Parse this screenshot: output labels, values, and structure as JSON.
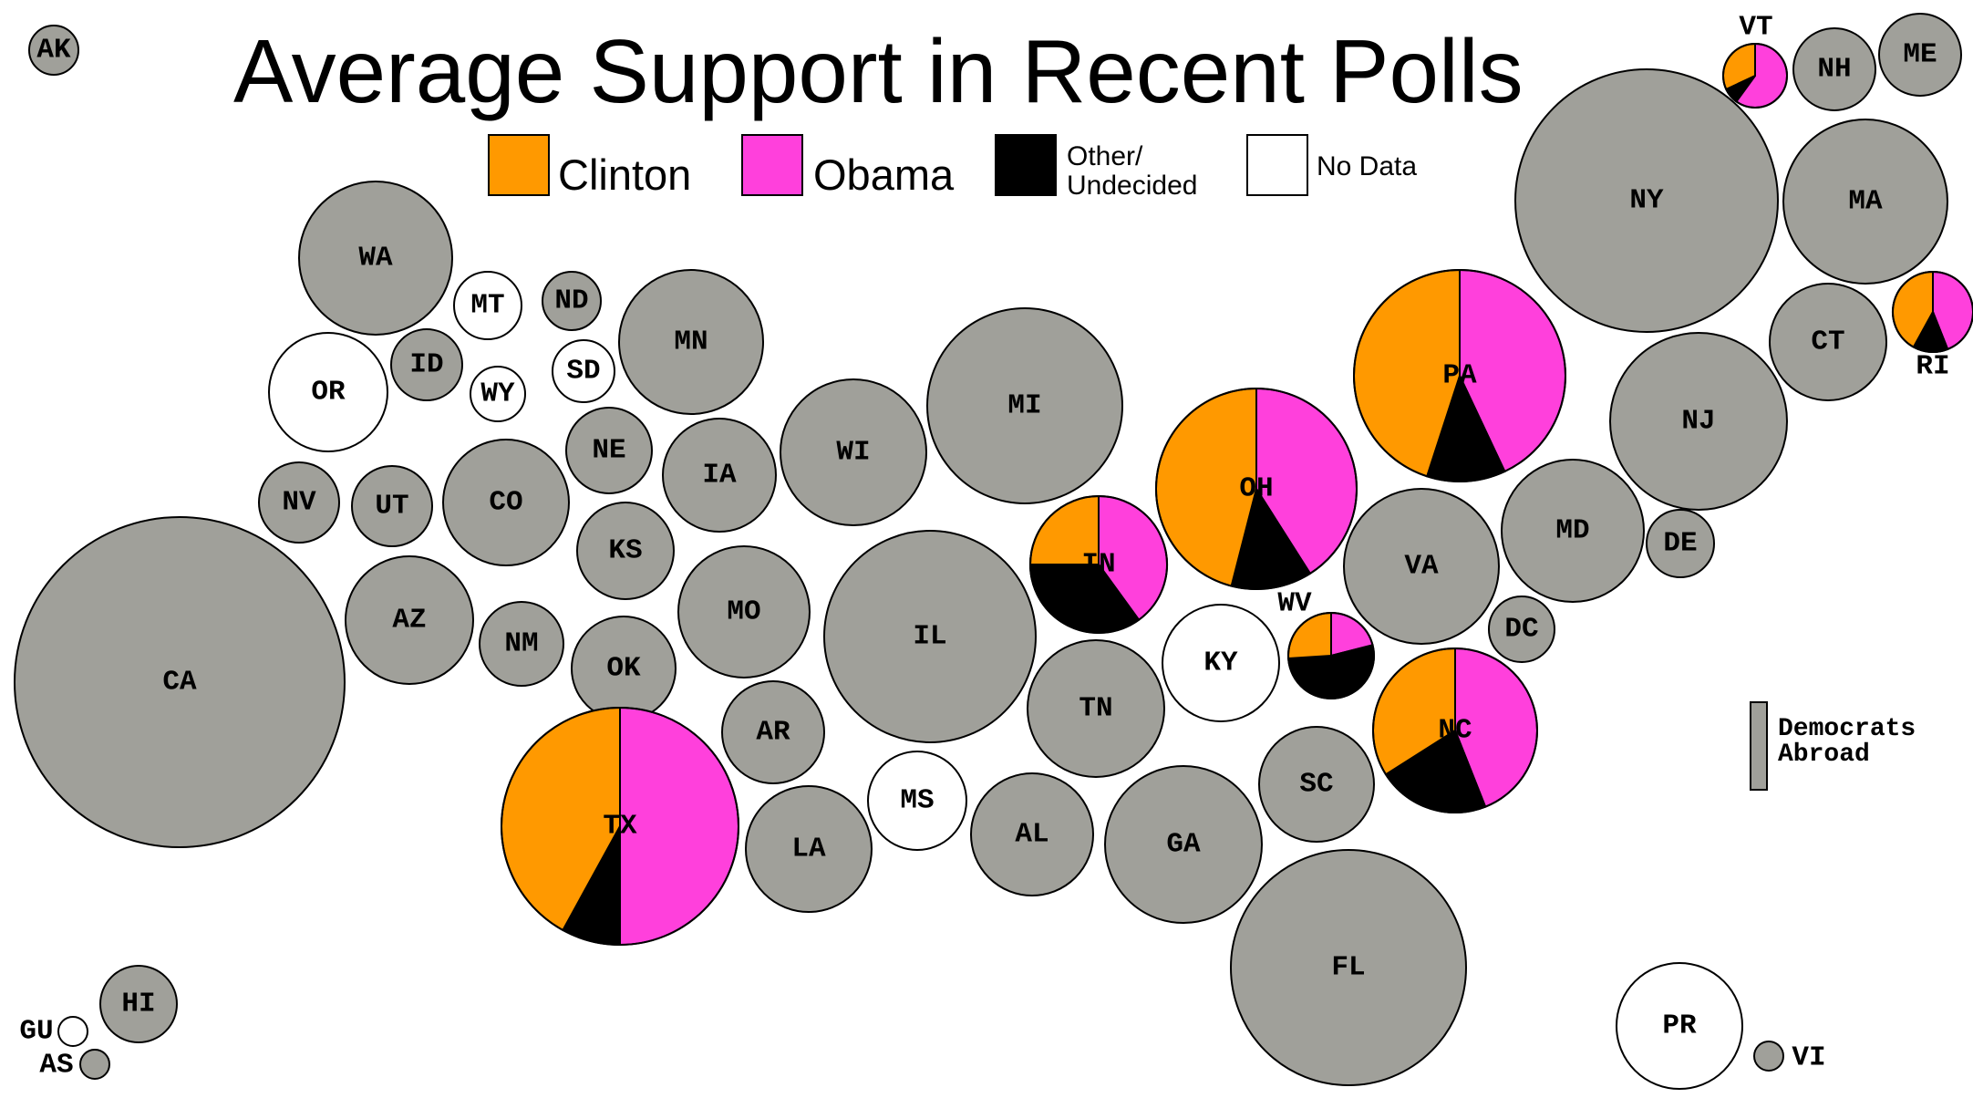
{
  "chart_data": {
    "type": "pie",
    "title": "Average Support in Recent Polls",
    "legend": [
      {
        "name": "Clinton",
        "color": "#ff9900"
      },
      {
        "name": "Obama",
        "color": "#ff40dc"
      },
      {
        "name": "Other/",
        "name2": "Undecided",
        "color": "#000000"
      },
      {
        "name": "No Data",
        "color": "#ffffff"
      }
    ],
    "colors": {
      "no_polls_fill": "#a0a09a",
      "no_data_fill": "#ffffff",
      "outline": "#000000"
    },
    "abroad_label_1": "Democrats",
    "abroad_label_2": "Abroad",
    "states": [
      {
        "label": "AK",
        "status": "gray"
      },
      {
        "label": "WA",
        "status": "gray"
      },
      {
        "label": "MT",
        "status": "nodata"
      },
      {
        "label": "ND",
        "status": "gray"
      },
      {
        "label": "MN",
        "status": "gray"
      },
      {
        "label": "OR",
        "status": "nodata"
      },
      {
        "label": "ID",
        "status": "gray"
      },
      {
        "label": "WY",
        "status": "nodata"
      },
      {
        "label": "SD",
        "status": "nodata"
      },
      {
        "label": "NE",
        "status": "gray"
      },
      {
        "label": "IA",
        "status": "gray"
      },
      {
        "label": "WI",
        "status": "gray"
      },
      {
        "label": "MI",
        "status": "gray"
      },
      {
        "label": "NV",
        "status": "gray"
      },
      {
        "label": "UT",
        "status": "gray"
      },
      {
        "label": "CO",
        "status": "gray"
      },
      {
        "label": "KS",
        "status": "gray"
      },
      {
        "label": "CA",
        "status": "gray"
      },
      {
        "label": "AZ",
        "status": "gray"
      },
      {
        "label": "NM",
        "status": "gray"
      },
      {
        "label": "OK",
        "status": "gray"
      },
      {
        "label": "MO",
        "status": "gray"
      },
      {
        "label": "IL",
        "status": "gray"
      },
      {
        "label": "AR",
        "status": "gray"
      },
      {
        "label": "TX",
        "status": "poll",
        "clinton": 42,
        "obama": 50,
        "other": 8
      },
      {
        "label": "LA",
        "status": "gray"
      },
      {
        "label": "MS",
        "status": "nodata"
      },
      {
        "label": "AL",
        "status": "gray"
      },
      {
        "label": "TN",
        "status": "gray"
      },
      {
        "label": "GA",
        "status": "gray"
      },
      {
        "label": "KY",
        "status": "nodata"
      },
      {
        "label": "IN",
        "status": "poll",
        "clinton": 25,
        "obama": 40,
        "other": 35
      },
      {
        "label": "OH",
        "status": "poll",
        "clinton": 46,
        "obama": 41,
        "other": 13
      },
      {
        "label": "WV",
        "status": "poll",
        "clinton": 26,
        "obama": 21,
        "other": 53
      },
      {
        "label": "PA",
        "status": "poll",
        "clinton": 45,
        "obama": 43,
        "other": 12
      },
      {
        "label": "NC",
        "status": "poll",
        "clinton": 34,
        "obama": 44,
        "other": 22
      },
      {
        "label": "VA",
        "status": "gray"
      },
      {
        "label": "SC",
        "status": "gray"
      },
      {
        "label": "FL",
        "status": "gray"
      },
      {
        "label": "MD",
        "status": "gray"
      },
      {
        "label": "DE",
        "status": "gray"
      },
      {
        "label": "DC",
        "status": "gray"
      },
      {
        "label": "NJ",
        "status": "gray"
      },
      {
        "label": "NY",
        "status": "gray"
      },
      {
        "label": "CT",
        "status": "gray"
      },
      {
        "label": "RI",
        "status": "poll",
        "clinton": 42,
        "obama": 44,
        "other": 14
      },
      {
        "label": "MA",
        "status": "gray"
      },
      {
        "label": "VT",
        "status": "poll",
        "clinton": 32,
        "obama": 60,
        "other": 8
      },
      {
        "label": "NH",
        "status": "gray"
      },
      {
        "label": "ME",
        "status": "gray"
      },
      {
        "label": "HI",
        "status": "gray"
      },
      {
        "label": "GU",
        "status": "nodata"
      },
      {
        "label": "AS",
        "status": "gray"
      },
      {
        "label": "PR",
        "status": "nodata"
      },
      {
        "label": "VI",
        "status": "gray"
      }
    ]
  }
}
